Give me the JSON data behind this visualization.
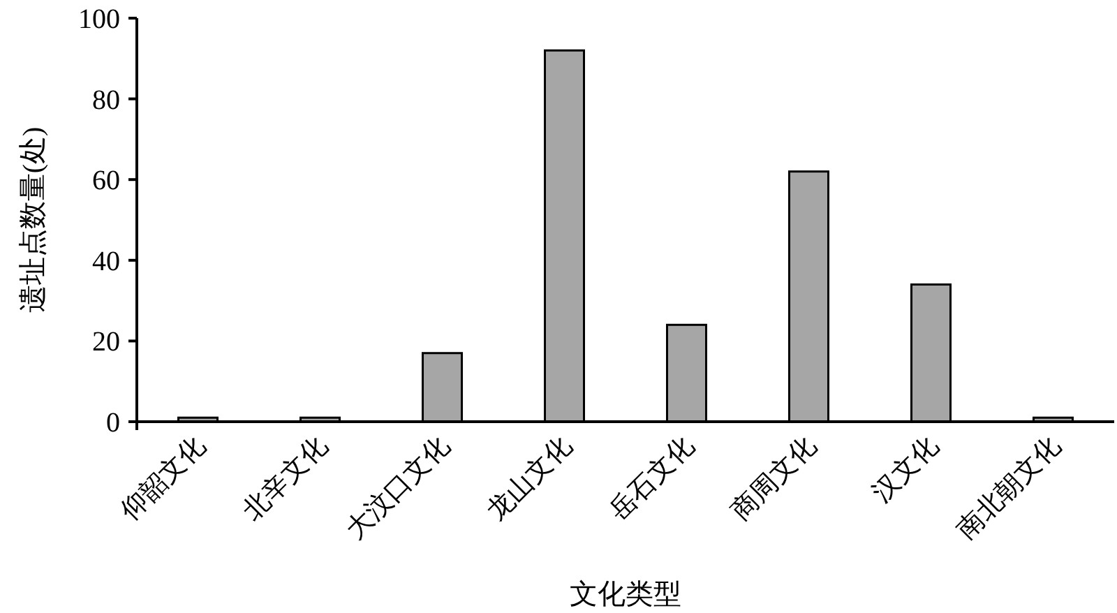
{
  "chart_data": {
    "type": "bar",
    "xlabel": "文化类型",
    "ylabel": "遗址点数量(处)",
    "categories": [
      "仰韶文化",
      "北辛文化",
      "大汶口文化",
      "龙山文化",
      "岳石文化",
      "商周文化",
      "汉文化",
      "南北朝文化"
    ],
    "values": [
      1,
      1,
      17,
      92,
      24,
      62,
      34,
      1
    ],
    "color": "#a6a6a6",
    "ylim": [
      0,
      100
    ],
    "yticks": [
      0,
      20,
      40,
      60,
      80,
      100
    ],
    "grid": false
  }
}
